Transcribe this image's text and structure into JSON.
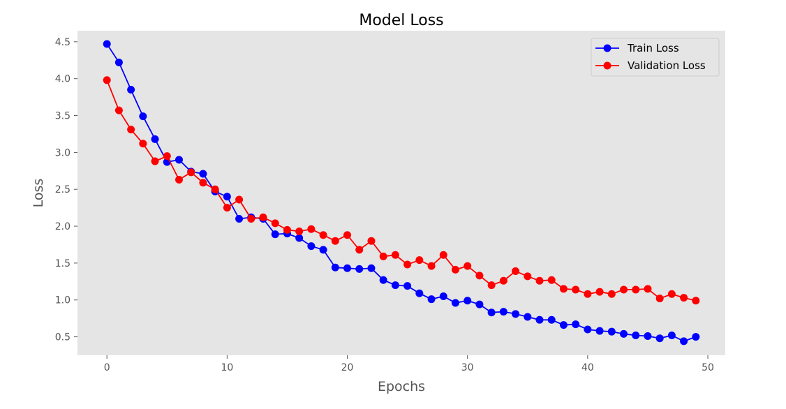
{
  "chart_data": {
    "type": "line",
    "title": "Model Loss",
    "xlabel": "Epochs",
    "ylabel": "Loss",
    "xlim": [
      -2.45,
      51.45
    ],
    "ylim": [
      0.25,
      4.65
    ],
    "xticks": [
      0,
      10,
      20,
      30,
      40,
      50
    ],
    "yticks": [
      0.5,
      1.0,
      1.5,
      2.0,
      2.5,
      3.0,
      3.5,
      4.0,
      4.5
    ],
    "ytick_labels": [
      "0.5",
      "1.0",
      "1.5",
      "2.0",
      "2.5",
      "3.0",
      "3.5",
      "4.0",
      "4.5"
    ],
    "grid": false,
    "background": "#e5e5e5",
    "legend_position": "top-right",
    "x": [
      0,
      1,
      2,
      3,
      4,
      5,
      6,
      7,
      8,
      9,
      10,
      11,
      12,
      13,
      14,
      15,
      16,
      17,
      18,
      19,
      20,
      21,
      22,
      23,
      24,
      25,
      26,
      27,
      28,
      29,
      30,
      31,
      32,
      33,
      34,
      35,
      36,
      37,
      38,
      39,
      40,
      41,
      42,
      43,
      44,
      45,
      46,
      47,
      48,
      49
    ],
    "series": [
      {
        "name": "Train Loss",
        "color": "#0000ff",
        "values": [
          4.47,
          4.22,
          3.85,
          3.49,
          3.18,
          2.87,
          2.9,
          2.74,
          2.71,
          2.47,
          2.4,
          2.1,
          2.12,
          2.1,
          1.89,
          1.9,
          1.84,
          1.73,
          1.68,
          1.44,
          1.43,
          1.42,
          1.43,
          1.27,
          1.2,
          1.19,
          1.09,
          1.01,
          1.05,
          0.96,
          0.99,
          0.94,
          0.83,
          0.84,
          0.81,
          0.77,
          0.73,
          0.73,
          0.66,
          0.67,
          0.6,
          0.58,
          0.57,
          0.54,
          0.52,
          0.51,
          0.48,
          0.52,
          0.44,
          0.5
        ]
      },
      {
        "name": "Validation Loss",
        "color": "#ff0000",
        "values": [
          3.98,
          3.57,
          3.31,
          3.12,
          2.88,
          2.95,
          2.63,
          2.73,
          2.59,
          2.5,
          2.25,
          2.36,
          2.1,
          2.12,
          2.04,
          1.95,
          1.93,
          1.96,
          1.88,
          1.8,
          1.88,
          1.68,
          1.8,
          1.59,
          1.61,
          1.48,
          1.54,
          1.46,
          1.61,
          1.41,
          1.46,
          1.33,
          1.2,
          1.26,
          1.39,
          1.32,
          1.26,
          1.27,
          1.15,
          1.14,
          1.08,
          1.11,
          1.08,
          1.14,
          1.14,
          1.15,
          1.02,
          1.08,
          1.03,
          0.99
        ]
      }
    ]
  }
}
